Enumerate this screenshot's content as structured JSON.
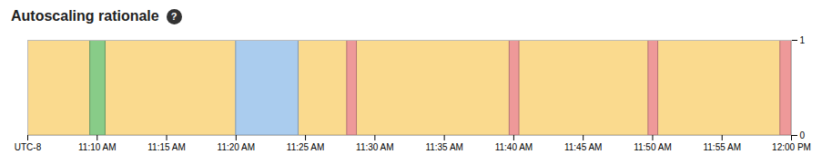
{
  "chart_data": {
    "type": "timeline",
    "title": "Autoscaling rationale",
    "annotations": [
      {
        "text": "?"
      }
    ],
    "bars": [
      {
        "x": 0,
        "width": 55,
        "color": "#FADA8E"
      },
      {
        "x": 4.5,
        "width": 1.1,
        "color": "#88CC88"
      },
      {
        "x": 15.0,
        "width": 4.5,
        "color": "#AACCEE"
      },
      {
        "x": 23.0,
        "width": 0.7,
        "color": "#EE9999"
      },
      {
        "x": 34.7,
        "width": 0.7,
        "color": "#EE9999"
      },
      {
        "x": 44.7,
        "width": 0.7,
        "color": "#EE9999"
      },
      {
        "x": 54.2,
        "width": 0.8,
        "color": "#EE9999"
      }
    ],
    "xlim": [
      0,
      55
    ],
    "xticks": [
      {
        "value": 0,
        "label": "UTC-8"
      },
      {
        "value": 5,
        "label": "11:10 AM"
      },
      {
        "value": 10,
        "label": "11:15 AM"
      },
      {
        "value": 15,
        "label": "11:20 AM"
      },
      {
        "value": 20,
        "label": "11:25 AM"
      },
      {
        "value": 25,
        "label": "11:30 AM"
      },
      {
        "value": 30,
        "label": "11:35 AM"
      },
      {
        "value": 35,
        "label": "11:40 AM"
      },
      {
        "value": 40,
        "label": "11:45 AM"
      },
      {
        "value": 45,
        "label": "11:50 AM"
      },
      {
        "value": 50,
        "label": "11:55 AM"
      },
      {
        "value": 55,
        "label": "12:00 PM"
      }
    ],
    "ylim": [
      0,
      1
    ],
    "yticks": [
      0,
      1
    ]
  }
}
